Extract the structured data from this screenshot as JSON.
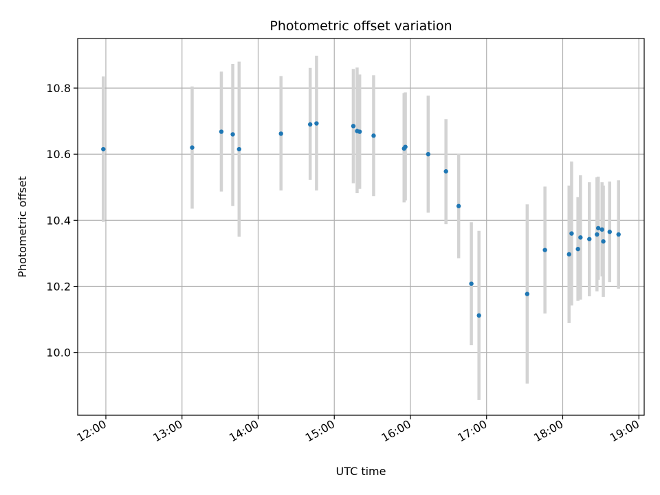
{
  "chart_data": {
    "type": "scatter",
    "title": "Photometric offset variation",
    "xlabel": "UTC time",
    "ylabel": "Photometric offset",
    "x_tick_labels": [
      "12:00",
      "13:00",
      "14:00",
      "15:00",
      "16:00",
      "17:00",
      "18:00",
      "19:00"
    ],
    "x_tick_hours": [
      12,
      13,
      14,
      15,
      16,
      17,
      18,
      19
    ],
    "y_tick_labels": [
      "10.0",
      "10.2",
      "10.4",
      "10.6",
      "10.8"
    ],
    "y_tick_values": [
      10.0,
      10.2,
      10.4,
      10.6,
      10.8
    ],
    "xlim": [
      11.63,
      19.07
    ],
    "ylim": [
      9.81,
      10.95
    ],
    "grid": true,
    "legend": "none",
    "colors": {
      "point": "#1f77b4",
      "errorbar": "#d3d3d3",
      "grid": "#b0b0b0"
    },
    "points": [
      {
        "x": "11:58",
        "y": 10.615,
        "lo": 10.395,
        "hi": 10.835
      },
      {
        "x": "13:08",
        "y": 10.62,
        "lo": 10.435,
        "hi": 10.805
      },
      {
        "x": "13:31",
        "y": 10.668,
        "lo": 10.487,
        "hi": 10.85
      },
      {
        "x": "13:40",
        "y": 10.66,
        "lo": 10.443,
        "hi": 10.873
      },
      {
        "x": "13:45",
        "y": 10.615,
        "lo": 10.35,
        "hi": 10.88
      },
      {
        "x": "14:18",
        "y": 10.662,
        "lo": 10.49,
        "hi": 10.836
      },
      {
        "x": "14:41",
        "y": 10.69,
        "lo": 10.522,
        "hi": 10.861
      },
      {
        "x": "14:46",
        "y": 10.693,
        "lo": 10.49,
        "hi": 10.898
      },
      {
        "x": "15:15",
        "y": 10.685,
        "lo": 10.512,
        "hi": 10.858
      },
      {
        "x": "15:18",
        "y": 10.67,
        "lo": 10.482,
        "hi": 10.862
      },
      {
        "x": "15:20",
        "y": 10.668,
        "lo": 10.495,
        "hi": 10.841
      },
      {
        "x": "15:31",
        "y": 10.656,
        "lo": 10.473,
        "hi": 10.839
      },
      {
        "x": "15:55",
        "y": 10.617,
        "lo": 10.454,
        "hi": 10.785
      },
      {
        "x": "15:56",
        "y": 10.622,
        "lo": 10.46,
        "hi": 10.787
      },
      {
        "x": "16:14",
        "y": 10.6,
        "lo": 10.423,
        "hi": 10.777
      },
      {
        "x": "16:28",
        "y": 10.548,
        "lo": 10.388,
        "hi": 10.706
      },
      {
        "x": "16:38",
        "y": 10.443,
        "lo": 10.285,
        "hi": 10.601
      },
      {
        "x": "16:48",
        "y": 10.208,
        "lo": 10.022,
        "hi": 10.394
      },
      {
        "x": "16:54",
        "y": 10.112,
        "lo": 9.856,
        "hi": 10.368
      },
      {
        "x": "17:32",
        "y": 10.177,
        "lo": 9.906,
        "hi": 10.448
      },
      {
        "x": "17:46",
        "y": 10.31,
        "lo": 10.118,
        "hi": 10.502
      },
      {
        "x": "18:05",
        "y": 10.297,
        "lo": 10.089,
        "hi": 10.505
      },
      {
        "x": "18:07",
        "y": 10.36,
        "lo": 10.142,
        "hi": 10.578
      },
      {
        "x": "18:12",
        "y": 10.313,
        "lo": 10.156,
        "hi": 10.47
      },
      {
        "x": "18:14",
        "y": 10.348,
        "lo": 10.16,
        "hi": 10.536
      },
      {
        "x": "18:21",
        "y": 10.343,
        "lo": 10.17,
        "hi": 10.515
      },
      {
        "x": "18:27",
        "y": 10.357,
        "lo": 10.185,
        "hi": 10.53
      },
      {
        "x": "18:28",
        "y": 10.376,
        "lo": 10.22,
        "hi": 10.532
      },
      {
        "x": "18:31",
        "y": 10.372,
        "lo": 10.23,
        "hi": 10.515
      },
      {
        "x": "18:32",
        "y": 10.336,
        "lo": 10.168,
        "hi": 10.505
      },
      {
        "x": "18:37",
        "y": 10.365,
        "lo": 10.213,
        "hi": 10.517
      },
      {
        "x": "18:44",
        "y": 10.357,
        "lo": 10.193,
        "hi": 10.521
      }
    ]
  }
}
